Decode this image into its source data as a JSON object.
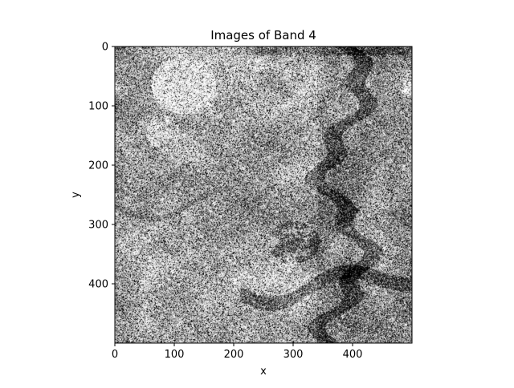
{
  "chart_data": {
    "type": "heatmap",
    "title": "Images of Band 4",
    "xlabel": "x",
    "ylabel": "y",
    "colormap": "gray",
    "xlim": [
      0,
      500
    ],
    "ylim": [
      500,
      0
    ],
    "x_ticks": [
      0,
      100,
      200,
      300,
      400
    ],
    "y_ticks": [
      0,
      100,
      200,
      300,
      400
    ],
    "grid": false,
    "legend": "none"
  }
}
